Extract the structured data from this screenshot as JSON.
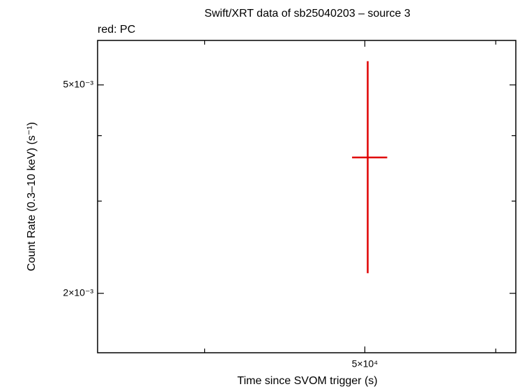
{
  "chart_data": {
    "type": "scatter",
    "title": "Swift/XRT data of sb25040203 – source 3",
    "legend_text": "red: PC",
    "x_label": "Time since SVOM trigger (s)",
    "y_label": "Count Rate (0.3–10 keV) (s⁻¹)",
    "x_log": true,
    "y_log": true,
    "xlim": [
      34460,
      61700
    ],
    "ylim": [
      0.00154,
      0.00608
    ],
    "xticks": [
      {
        "value": 50000,
        "label": "5×10⁴"
      }
    ],
    "xminor_ticks": [
      40000,
      60000
    ],
    "yticks": [
      {
        "value": 0.002,
        "label": "2×10⁻³"
      },
      {
        "value": 0.005,
        "label": "5×10⁻³"
      }
    ],
    "yminor_ticks": [
      0.003,
      0.004
    ],
    "series": [
      {
        "name": "PC",
        "color": "#e00000",
        "x": [
          50200
        ],
        "x_err_minus": [
          1080
        ],
        "x_err_plus": [
          1380
        ],
        "values": [
          0.003634
        ],
        "y_err_minus": [
          0.001449
        ],
        "y_err_plus": [
          0.001916
        ]
      }
    ]
  }
}
